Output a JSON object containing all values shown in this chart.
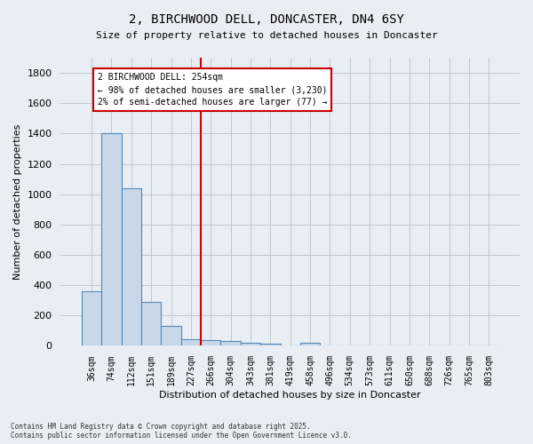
{
  "title_line1": "2, BIRCHWOOD DELL, DONCASTER, DN4 6SY",
  "title_line2": "Size of property relative to detached houses in Doncaster",
  "xlabel": "Distribution of detached houses by size in Doncaster",
  "ylabel": "Number of detached properties",
  "bar_labels": [
    "36sqm",
    "74sqm",
    "112sqm",
    "151sqm",
    "189sqm",
    "227sqm",
    "266sqm",
    "304sqm",
    "343sqm",
    "381sqm",
    "419sqm",
    "458sqm",
    "496sqm",
    "534sqm",
    "573sqm",
    "611sqm",
    "650sqm",
    "688sqm",
    "726sqm",
    "765sqm",
    "803sqm"
  ],
  "bar_values": [
    360,
    1400,
    1040,
    290,
    130,
    45,
    40,
    30,
    20,
    15,
    0,
    20,
    0,
    0,
    0,
    0,
    0,
    0,
    0,
    0,
    0
  ],
  "bar_color": "#c8d8e8",
  "bar_edge_color": "#5588bb",
  "vline_x_index": 6,
  "vline_color": "#cc0000",
  "annotation_text": "2 BIRCHWOOD DELL: 254sqm\n← 98% of detached houses are smaller (3,230)\n2% of semi-detached houses are larger (77) →",
  "annotation_box_color": "#cc0000",
  "ylim": [
    0,
    1900
  ],
  "yticks": [
    0,
    200,
    400,
    600,
    800,
    1000,
    1200,
    1400,
    1600,
    1800
  ],
  "footnote": "Contains HM Land Registry data © Crown copyright and database right 2025.\nContains public sector information licensed under the Open Government Licence v3.0.",
  "bg_color": "#e8eef4",
  "plot_bg_color": "#e8eef4",
  "grid_color": "#c0c8d0"
}
